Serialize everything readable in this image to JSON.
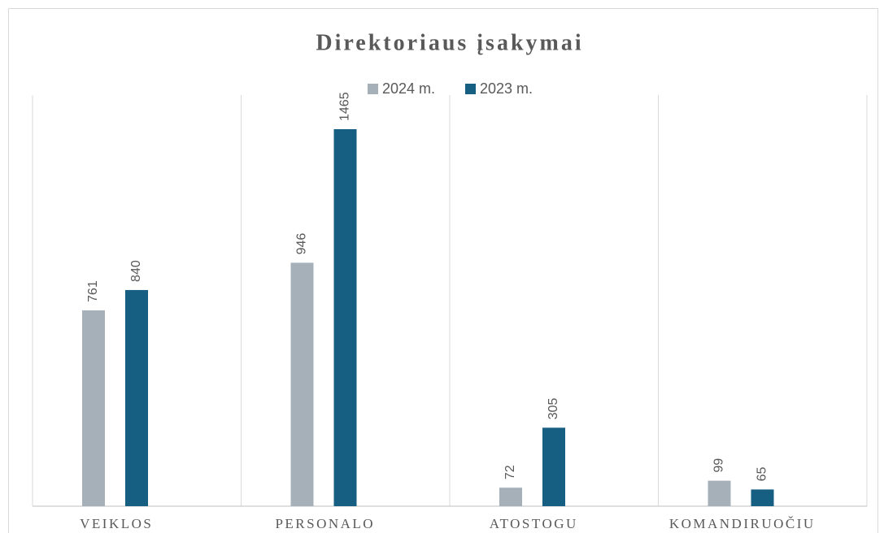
{
  "chart_data": {
    "type": "bar",
    "title": "Direktoriaus įsakymai",
    "categories": [
      "VEIKLOS",
      "PERSONALO",
      "ATOSTOGU",
      "KOMANDIRUOČIU"
    ],
    "series": [
      {
        "name": "2024 m.",
        "color": "#a5b0b9",
        "values": [
          761,
          946,
          72,
          99
        ]
      },
      {
        "name": "2023 m.",
        "color": "#175f82",
        "values": [
          840,
          1465,
          305,
          65
        ]
      }
    ]
  }
}
